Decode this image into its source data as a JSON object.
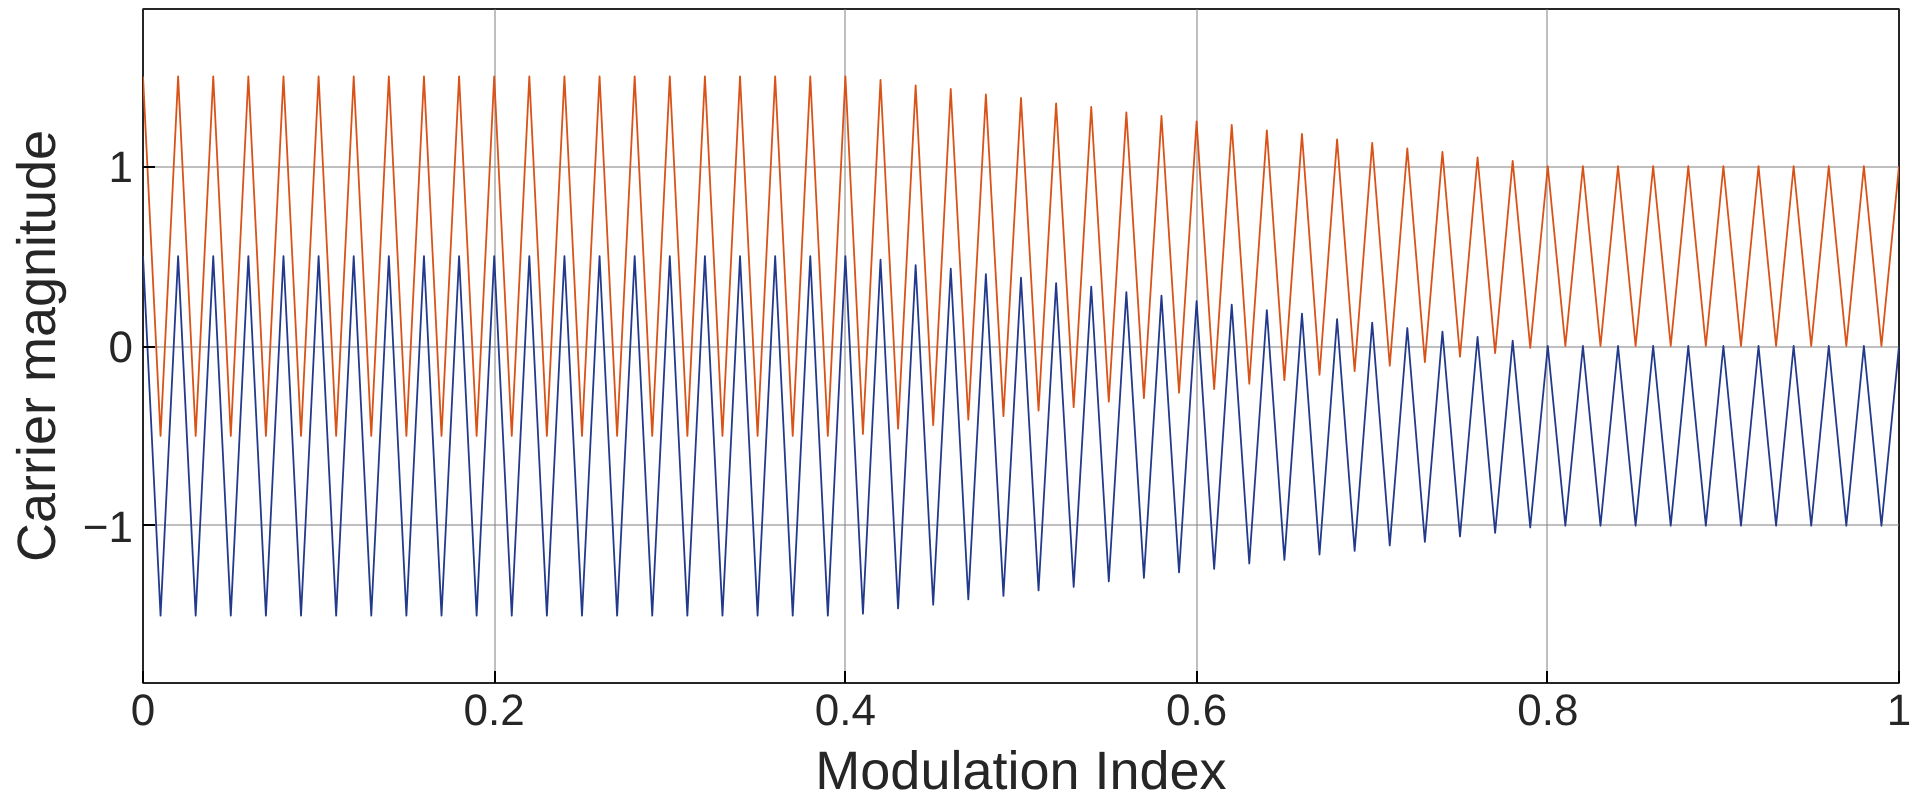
{
  "chart_data": {
    "type": "line",
    "xlabel": "Modulation Index",
    "ylabel": "Carrier magnitude",
    "x": [
      0,
      0.01,
      0.02,
      0.03,
      0.04,
      0.05,
      0.06,
      0.07,
      0.08,
      0.09,
      0.1,
      0.11,
      0.12,
      0.13,
      0.14,
      0.15,
      0.16,
      0.17,
      0.18,
      0.19,
      0.2,
      0.21,
      0.22,
      0.23,
      0.24,
      0.25,
      0.26,
      0.27,
      0.28,
      0.29,
      0.3,
      0.31,
      0.32,
      0.33,
      0.34,
      0.35,
      0.36,
      0.37,
      0.38,
      0.39,
      0.4,
      0.41,
      0.42,
      0.43,
      0.44,
      0.45,
      0.46,
      0.47,
      0.48,
      0.49,
      0.5,
      0.51,
      0.52,
      0.53,
      0.54,
      0.55,
      0.56,
      0.57,
      0.58,
      0.59,
      0.6,
      0.61,
      0.62,
      0.63,
      0.64,
      0.65,
      0.66,
      0.67,
      0.68,
      0.69,
      0.7,
      0.71,
      0.72,
      0.73,
      0.74,
      0.75,
      0.76,
      0.77,
      0.78,
      0.79,
      0.8,
      0.81,
      0.82,
      0.83,
      0.84,
      0.85,
      0.86,
      0.87,
      0.88,
      0.89,
      0.9,
      0.91,
      0.92,
      0.93,
      0.94,
      0.95,
      0.96,
      0.97,
      0.98,
      0.99,
      1
    ],
    "series": [
      {
        "color": "#233a8c",
        "values": [
          0.5,
          -1.5,
          0.5,
          -1.5,
          0.5,
          -1.5,
          0.5,
          -1.5,
          0.5,
          -1.5,
          0.5,
          -1.5,
          0.5,
          -1.5,
          0.5,
          -1.5,
          0.5,
          -1.5,
          0.5,
          -1.5,
          0.5,
          -1.5,
          0.5,
          -1.5,
          0.5,
          -1.5,
          0.5,
          -1.5,
          0.5,
          -1.5,
          0.5,
          -1.5,
          0.5,
          -1.5,
          0.5,
          -1.5,
          0.5,
          -1.5,
          0.5,
          -1.5,
          0.5,
          -1.49,
          0.48,
          -1.46,
          0.45,
          -1.44,
          0.43,
          -1.41,
          0.4,
          -1.39,
          0.38,
          -1.36,
          0.35,
          -1.34,
          0.33,
          -1.31,
          0.3,
          -1.29,
          0.28,
          -1.26,
          0.25,
          -1.24,
          0.23,
          -1.21,
          0.2,
          -1.19,
          0.18,
          -1.16,
          0.15,
          -1.14,
          0.13,
          -1.11,
          0.1,
          -1.09,
          0.08,
          -1.06,
          0.05,
          -1.04,
          0.03,
          -1.01,
          0,
          -1,
          0,
          -1,
          0,
          -1,
          0,
          -1,
          0,
          -1,
          0,
          -1,
          0,
          -1,
          0,
          -1,
          0,
          -1,
          0,
          -1,
          0
        ]
      },
      {
        "color": "#d95319",
        "values": [
          1.5,
          -0.5,
          1.5,
          -0.5,
          1.5,
          -0.5,
          1.5,
          -0.5,
          1.5,
          -0.5,
          1.5,
          -0.5,
          1.5,
          -0.5,
          1.5,
          -0.5,
          1.5,
          -0.5,
          1.5,
          -0.5,
          1.5,
          -0.5,
          1.5,
          -0.5,
          1.5,
          -0.5,
          1.5,
          -0.5,
          1.5,
          -0.5,
          1.5,
          -0.5,
          1.5,
          -0.5,
          1.5,
          -0.5,
          1.5,
          -0.5,
          1.5,
          -0.5,
          1.5,
          -0.49,
          1.48,
          -0.46,
          1.45,
          -0.44,
          1.43,
          -0.41,
          1.4,
          -0.39,
          1.38,
          -0.36,
          1.35,
          -0.34,
          1.33,
          -0.31,
          1.3,
          -0.29,
          1.28,
          -0.26,
          1.25,
          -0.24,
          1.23,
          -0.21,
          1.2,
          -0.19,
          1.18,
          -0.16,
          1.15,
          -0.14,
          1.13,
          -0.11,
          1.1,
          -0.09,
          1.08,
          -0.06,
          1.05,
          -0.04,
          1.03,
          -0.01,
          1,
          0,
          1,
          0,
          1,
          0,
          1,
          0,
          1,
          0,
          1,
          0,
          1,
          0,
          1,
          0,
          1,
          0,
          1,
          0,
          1
        ]
      }
    ],
    "xlim": [
      0,
      1
    ],
    "xticks": [
      0,
      0.2,
      0.4,
      0.6,
      0.8,
      1
    ],
    "ylim": [
      -1.875,
      1.875
    ],
    "yticks": [
      -1,
      0,
      1
    ],
    "grid": true
  }
}
